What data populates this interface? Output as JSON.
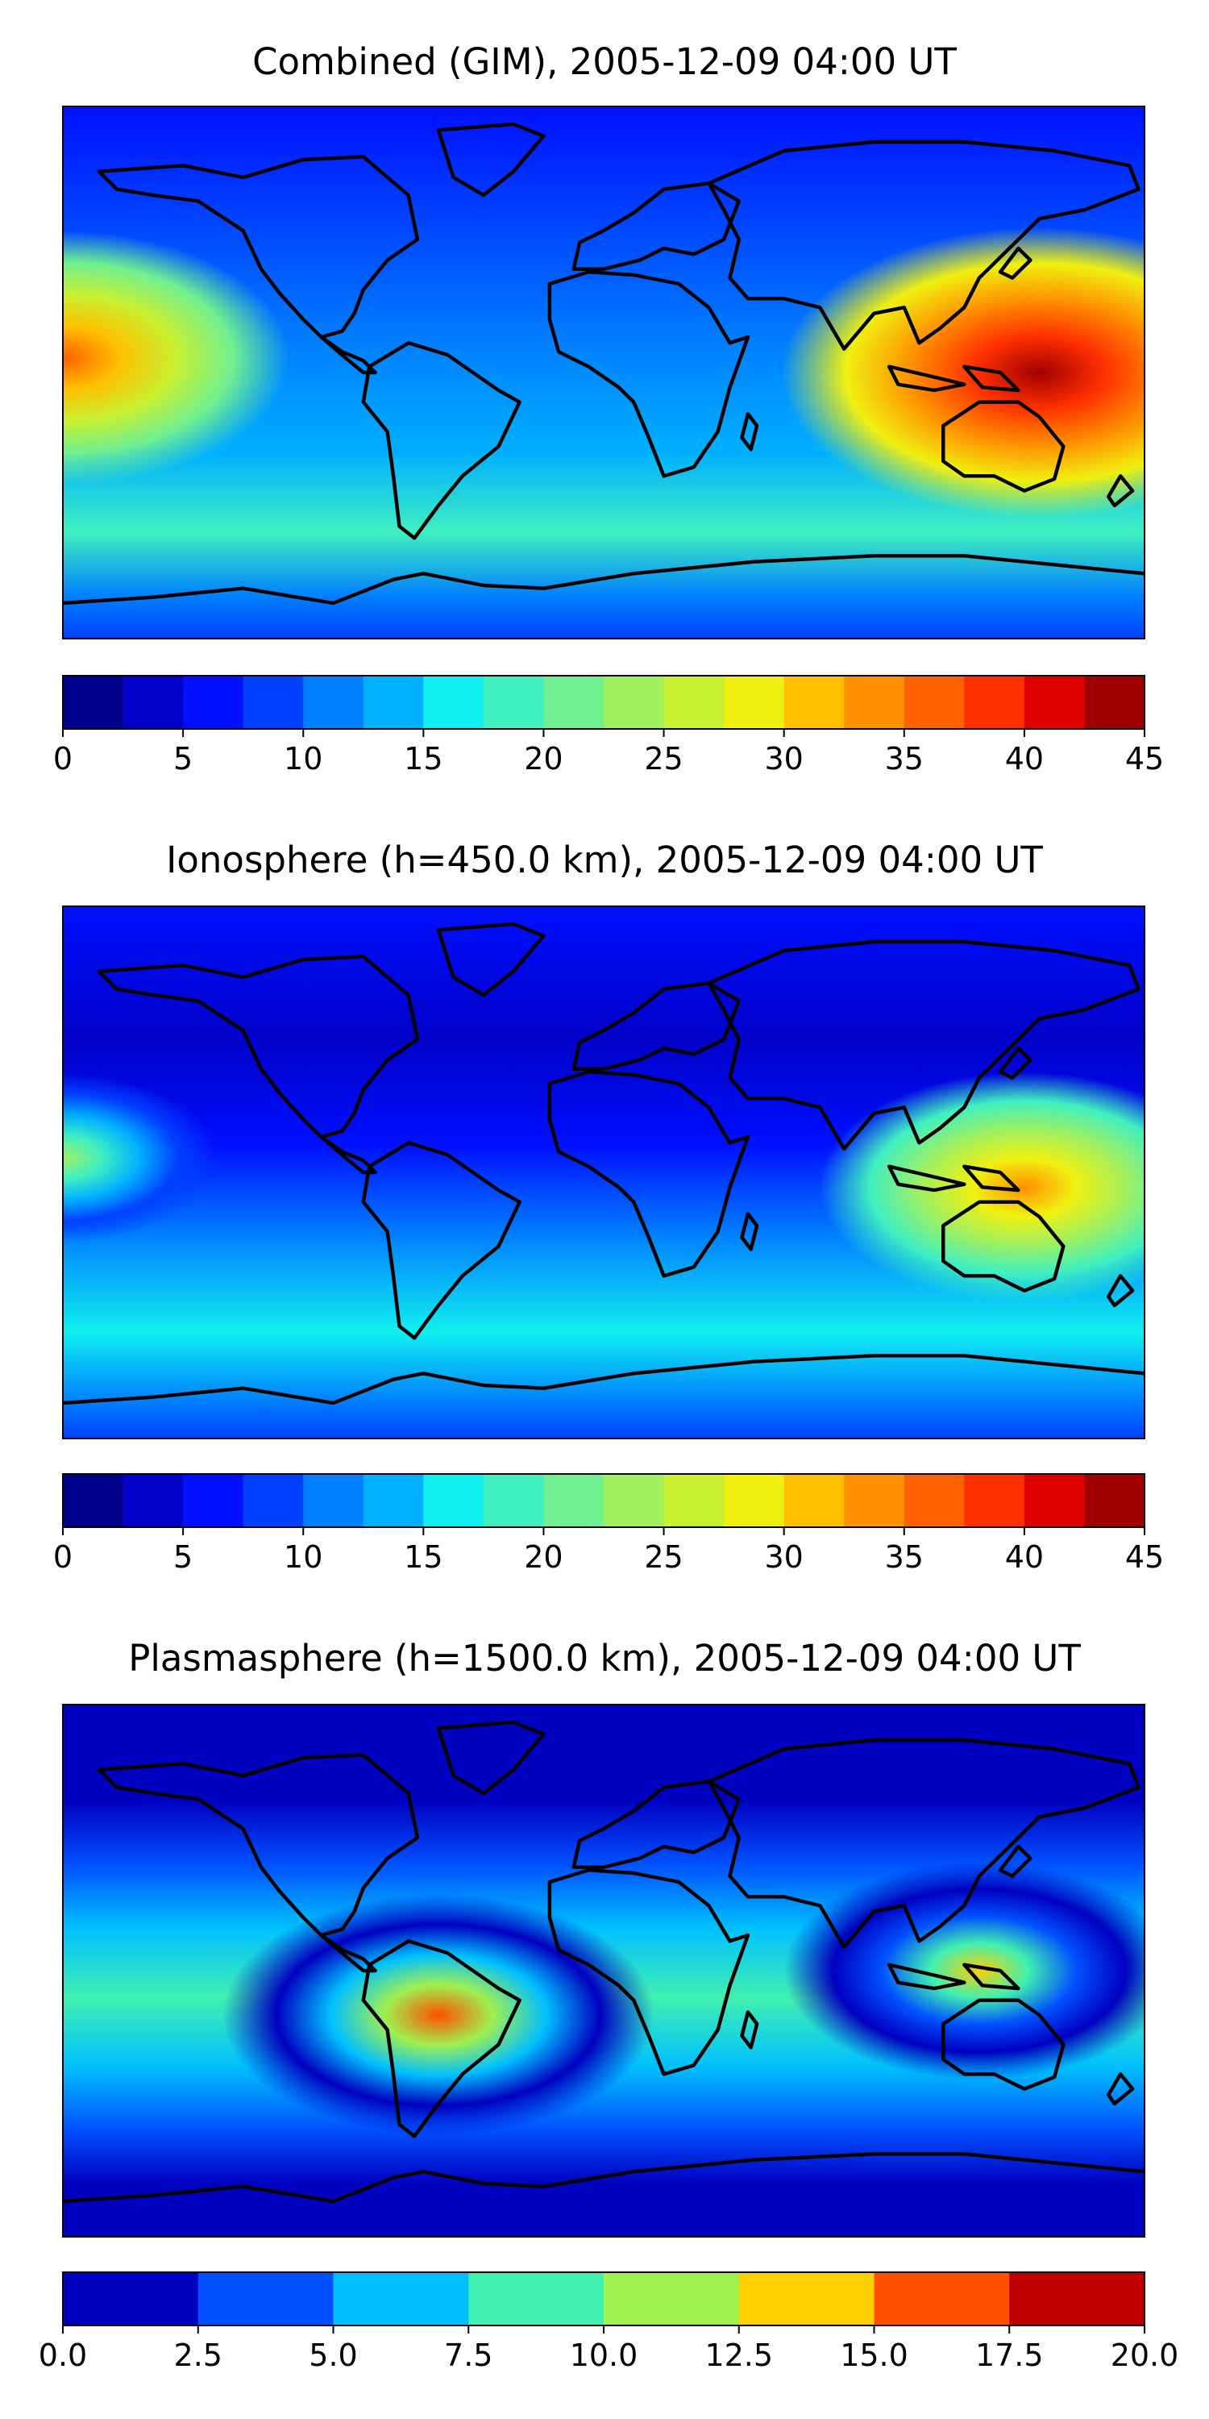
{
  "figure": {
    "panels": [
      {
        "title": "Combined (GIM), 2005-12-09 04:00 UT",
        "colorbar": {
          "ticks": [
            "0",
            "5",
            "10",
            "15",
            "20",
            "25",
            "30",
            "35",
            "40",
            "45"
          ],
          "range": [
            0,
            45
          ],
          "colors": [
            "#00008f",
            "#0000c8",
            "#0010ff",
            "#0040ff",
            "#0080ff",
            "#00b0ff",
            "#10f0f0",
            "#40f0c0",
            "#70f090",
            "#a0f060",
            "#c8f030",
            "#f0f010",
            "#ffc000",
            "#ff9000",
            "#ff6000",
            "#ff3000",
            "#e00000",
            "#a00000"
          ]
        },
        "heat_spots": [
          {
            "lon": 145,
            "lat": 0,
            "strength": 1.0
          },
          {
            "lon": -180,
            "lat": 5,
            "strength": 0.85
          }
        ]
      },
      {
        "title": "Ionosphere  (h=450.0 km), 2005-12-09 04:00 UT",
        "colorbar": {
          "ticks": [
            "0",
            "5",
            "10",
            "15",
            "20",
            "25",
            "30",
            "35",
            "40",
            "45"
          ],
          "range": [
            0,
            45
          ],
          "colors": [
            "#00008f",
            "#0000c8",
            "#0010ff",
            "#0040ff",
            "#0080ff",
            "#00b0ff",
            "#10f0f0",
            "#40f0c0",
            "#70f090",
            "#a0f060",
            "#c8f030",
            "#f0f010",
            "#ffc000",
            "#ff9000",
            "#ff6000",
            "#ff3000",
            "#e00000",
            "#a00000"
          ]
        },
        "heat_spots": [
          {
            "lon": 140,
            "lat": -5,
            "strength": 0.75
          },
          {
            "lon": -180,
            "lat": 5,
            "strength": 0.5
          }
        ]
      },
      {
        "title": "Plasmasphere (h=1500.0 km), 2005-12-09 04:00 UT",
        "colorbar": {
          "ticks": [
            "0.0",
            "2.5",
            "5.0",
            "7.5",
            "10.0",
            "12.5",
            "15.0",
            "17.5",
            "20.0"
          ],
          "range": [
            0,
            20
          ],
          "colors": [
            "#0000c0",
            "#0050ff",
            "#00c0ff",
            "#40f0b0",
            "#a0f050",
            "#ffd000",
            "#ff5000",
            "#c00000"
          ]
        },
        "heat_spots": [
          {
            "lon": -55,
            "lat": -15,
            "strength": 0.8
          },
          {
            "lon": 125,
            "lat": 0,
            "strength": 0.7
          }
        ]
      }
    ]
  }
}
